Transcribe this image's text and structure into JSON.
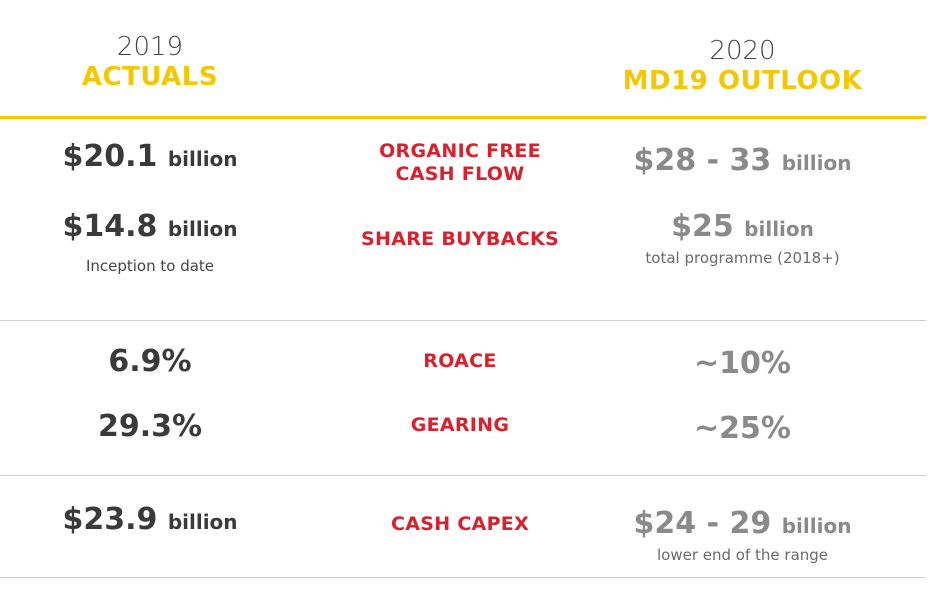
{
  "header": {
    "left_year": "2019",
    "left_title": "ACTUALS",
    "right_year": "2020",
    "right_title": "MD19 OUTLOOK"
  },
  "rows": [
    {
      "actual_value": "$20.1",
      "actual_unit": "billion",
      "actual_note": "",
      "label_line1": "ORGANIC FREE",
      "label_line2": "CASH FLOW",
      "outlook_value": "$28 - 33",
      "outlook_unit": "billion",
      "outlook_note": ""
    },
    {
      "actual_value": "$14.8",
      "actual_unit": "billion",
      "actual_note": "Inception to date",
      "label_line1": "SHARE BUYBACKS",
      "label_line2": "",
      "outlook_value": "$25",
      "outlook_unit": "billion",
      "outlook_note": "total programme (2018+)"
    },
    {
      "actual_value": "6.9%",
      "actual_unit": "",
      "actual_note": "",
      "label_line1": "ROACE",
      "label_line2": "",
      "outlook_value": "~10%",
      "outlook_unit": "",
      "outlook_note": ""
    },
    {
      "actual_value": "29.3%",
      "actual_unit": "",
      "actual_note": "",
      "label_line1": "GEARING",
      "label_line2": "",
      "outlook_value": "~25%",
      "outlook_unit": "",
      "outlook_note": ""
    },
    {
      "actual_value": "$23.9",
      "actual_unit": "billion",
      "actual_note": "",
      "label_line1": "CASH CAPEX",
      "label_line2": "",
      "outlook_value": "$24 - 29",
      "outlook_unit": "billion",
      "outlook_note": "lower end of the range"
    }
  ],
  "colors": {
    "accent_yellow": "#f4c800",
    "label_red": "#d9202c",
    "dark_text": "#3a3a3a",
    "grey_text": "#8a8a8a"
  }
}
